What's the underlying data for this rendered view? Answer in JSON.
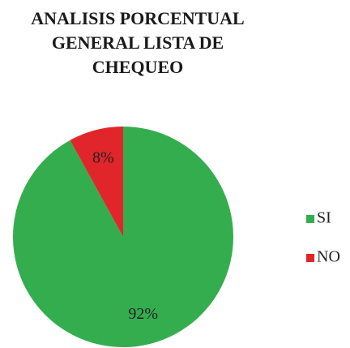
{
  "chart_data": {
    "type": "pie",
    "title": "ANALISIS PORCENTUAL GENERAL LISTA DE CHEQUEO",
    "categories": [
      "SI",
      "NO"
    ],
    "values": [
      92,
      8
    ],
    "value_labels": [
      "92%",
      "8%"
    ],
    "colors": [
      "#34ad4f",
      "#e0262a"
    ],
    "legend": "right"
  }
}
